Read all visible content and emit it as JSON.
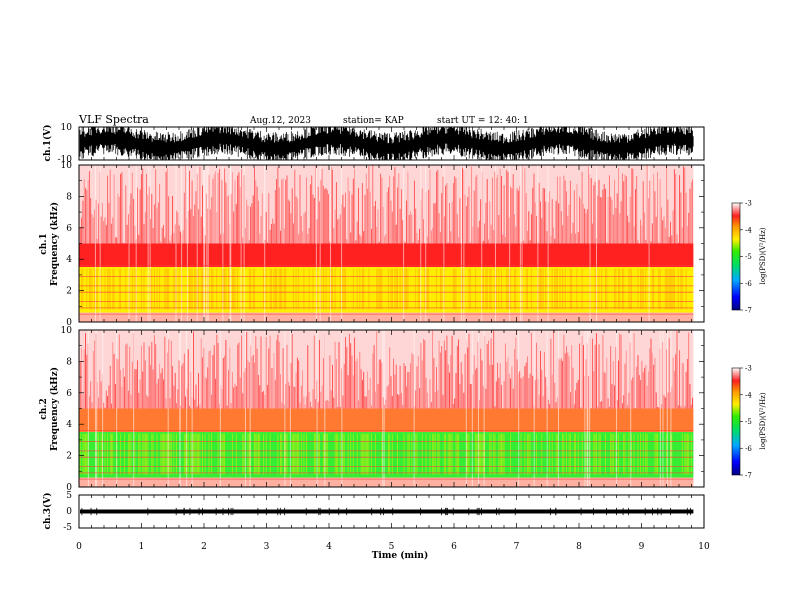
{
  "header": {
    "title": "VLF Spectra",
    "date": "Aug.12, 2023",
    "station": "station= KAP",
    "start": "start  UT  =   12: 40: 1"
  },
  "chart_data": [
    {
      "type": "line",
      "id": "ch1-waveform",
      "ylabel": "ch.1(V)",
      "ylim": [
        -10,
        10
      ],
      "yticks": [
        "10",
        "-10"
      ],
      "xlim": [
        0,
        10
      ],
      "color": "#000000"
    },
    {
      "type": "heatmap",
      "id": "ch1-spectrogram",
      "ylabel": [
        "ch.1",
        "Frequency  (kHz)"
      ],
      "xlim": [
        0,
        10
      ],
      "data_xmax": 9.83,
      "ylim": [
        0,
        10
      ],
      "yticks": [
        "0",
        "2",
        "4",
        "6",
        "8",
        "10"
      ],
      "bands": [
        {
          "f": [
            0.7,
            3.6
          ],
          "level": "yellow-green"
        },
        {
          "f": [
            3.6,
            5.0
          ],
          "level": "red"
        },
        {
          "f": [
            5.0,
            10.0
          ],
          "level": "light-red"
        }
      ],
      "colorbar": {
        "label": "log(PSD)(V²/Hz)",
        "ticks": [
          "-3",
          "-4",
          "-5",
          "-6",
          "-7"
        ]
      }
    },
    {
      "type": "heatmap",
      "id": "ch2-spectrogram",
      "ylabel": [
        "ch.2",
        "Frequency  (kHz)"
      ],
      "xlim": [
        0,
        10
      ],
      "data_xmax": 9.83,
      "ylim": [
        0,
        10
      ],
      "yticks": [
        "0",
        "2",
        "4",
        "6",
        "8",
        "10"
      ],
      "bands": [
        {
          "f": [
            0.6,
            3.2
          ],
          "level": "green"
        },
        {
          "f": [
            3.2,
            4.5
          ],
          "level": "orange-red"
        },
        {
          "f": [
            4.5,
            10.0
          ],
          "level": "red"
        }
      ],
      "colorbar": {
        "label": "log(PSD)(V²/Hz)",
        "ticks": [
          "-3",
          "-4",
          "-5",
          "-6",
          "-7"
        ]
      }
    },
    {
      "type": "line",
      "id": "ch3-waveform",
      "ylabel": "ch.3(V)",
      "ylim": [
        -5,
        5
      ],
      "yticks": [
        "5",
        "0",
        "-5"
      ],
      "xlim": [
        0,
        10
      ],
      "xlabel": "Time  (min)",
      "xticks": [
        "0",
        "1",
        "2",
        "3",
        "4",
        "5",
        "6",
        "7",
        "8",
        "9",
        "10"
      ],
      "color": "#000000"
    }
  ],
  "colors": {
    "red": "#ff2020",
    "orange": "#ff9a00",
    "yellow": "#ffee00",
    "green": "#33ee33",
    "light_red": "#ff8080",
    "axis": "#000000"
  }
}
